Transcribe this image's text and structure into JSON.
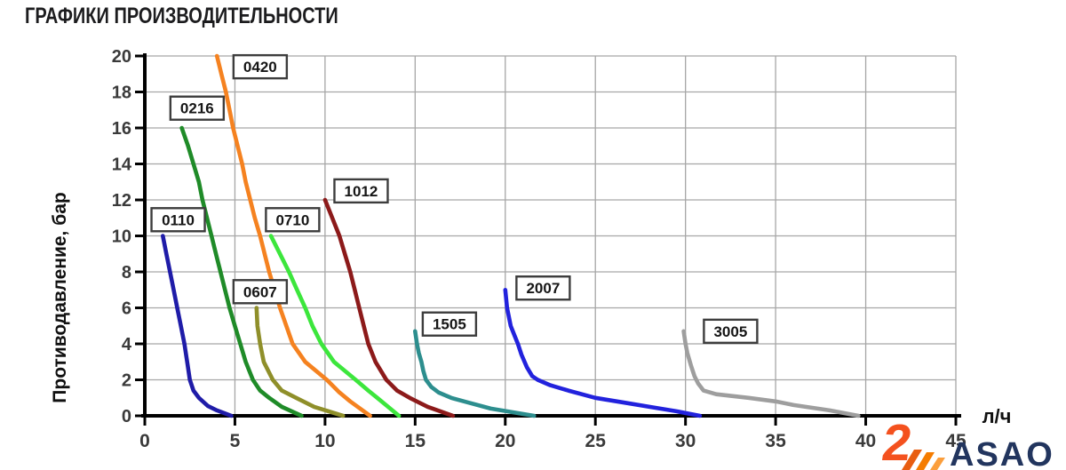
{
  "title": "ГРАФИКИ ПРОИЗВОДИТЕЛЬНОСТИ",
  "logo": {
    "text": "ASAO",
    "mark_glyph": "2",
    "text_color": "#22355e",
    "mark_color": "#f4511e",
    "stripe_colors": [
      "#e85d10",
      "#f57c00",
      "#fb9e3c"
    ]
  },
  "chart_data": {
    "type": "line",
    "title": "",
    "xlabel": "л/ч",
    "ylabel": "Противодавление, бар",
    "xlim": [
      0,
      45
    ],
    "ylim": [
      0,
      20
    ],
    "x_ticks": [
      0,
      5,
      10,
      15,
      20,
      25,
      30,
      35,
      40,
      45
    ],
    "y_ticks": [
      0,
      2,
      4,
      6,
      8,
      10,
      12,
      14,
      16,
      18,
      20
    ],
    "grid": true,
    "grid_color": "#a6a6a6",
    "axis_color": "#000000",
    "tick_label_color": "#3a3a3a",
    "legend_position": "inline-boxed-labels",
    "series": [
      {
        "name": "0110",
        "color": "#1f1ca8",
        "label_at": [
          1.85,
          10.9
        ],
        "points": [
          [
            1.0,
            10
          ],
          [
            1.2,
            9
          ],
          [
            1.4,
            8
          ],
          [
            1.6,
            7
          ],
          [
            1.8,
            6
          ],
          [
            2.0,
            5
          ],
          [
            2.2,
            4
          ],
          [
            2.35,
            3
          ],
          [
            2.5,
            2
          ],
          [
            2.7,
            1.4
          ],
          [
            3.0,
            1.0
          ],
          [
            3.5,
            0.55
          ],
          [
            4.0,
            0.3
          ],
          [
            4.8,
            0
          ]
        ]
      },
      {
        "name": "0216",
        "color": "#1f8b28",
        "label_at": [
          2.9,
          17.1
        ],
        "points": [
          [
            2.05,
            16
          ],
          [
            2.4,
            15
          ],
          [
            2.7,
            14
          ],
          [
            3.0,
            13
          ],
          [
            3.2,
            12
          ],
          [
            3.45,
            11
          ],
          [
            3.7,
            10
          ],
          [
            3.95,
            9
          ],
          [
            4.2,
            8
          ],
          [
            4.45,
            7
          ],
          [
            4.7,
            6
          ],
          [
            5.0,
            5
          ],
          [
            5.3,
            4
          ],
          [
            5.6,
            3
          ],
          [
            6.0,
            2
          ],
          [
            6.4,
            1.4
          ],
          [
            6.9,
            1.0
          ],
          [
            7.6,
            0.5
          ],
          [
            8.7,
            0
          ]
        ]
      },
      {
        "name": "0420",
        "color": "#f58220",
        "label_at": [
          6.4,
          19.4
        ],
        "points": [
          [
            4.0,
            20
          ],
          [
            4.25,
            19
          ],
          [
            4.5,
            18
          ],
          [
            4.7,
            17
          ],
          [
            4.9,
            16
          ],
          [
            5.15,
            15
          ],
          [
            5.4,
            14
          ],
          [
            5.6,
            13
          ],
          [
            5.85,
            12
          ],
          [
            6.1,
            11
          ],
          [
            6.4,
            10
          ],
          [
            6.65,
            9
          ],
          [
            6.9,
            8
          ],
          [
            7.2,
            7
          ],
          [
            7.5,
            6
          ],
          [
            7.85,
            5
          ],
          [
            8.2,
            4
          ],
          [
            8.9,
            3
          ],
          [
            10.1,
            2
          ],
          [
            10.8,
            1.3
          ],
          [
            11.4,
            0.8
          ],
          [
            12.5,
            0
          ]
        ]
      },
      {
        "name": "0607",
        "color": "#8f8f2a",
        "label_at": [
          6.4,
          6.9
        ],
        "points": [
          [
            6.2,
            6
          ],
          [
            6.25,
            5
          ],
          [
            6.4,
            4
          ],
          [
            6.6,
            3
          ],
          [
            7.1,
            2
          ],
          [
            7.6,
            1.4
          ],
          [
            8.4,
            1.0
          ],
          [
            9.4,
            0.5
          ],
          [
            11.0,
            0
          ]
        ]
      },
      {
        "name": "0710",
        "color": "#3ce63c",
        "label_at": [
          8.2,
          10.9
        ],
        "points": [
          [
            7.0,
            10
          ],
          [
            7.5,
            9
          ],
          [
            8.0,
            8
          ],
          [
            8.45,
            7
          ],
          [
            8.9,
            6
          ],
          [
            9.3,
            5
          ],
          [
            9.8,
            4
          ],
          [
            10.5,
            3
          ],
          [
            11.7,
            2
          ],
          [
            12.4,
            1.4
          ],
          [
            12.9,
            1.0
          ],
          [
            13.5,
            0.5
          ],
          [
            14.1,
            0
          ]
        ]
      },
      {
        "name": "1012",
        "color": "#8c1a1a",
        "label_at": [
          12.0,
          12.5
        ],
        "points": [
          [
            10.0,
            12
          ],
          [
            10.4,
            11
          ],
          [
            10.8,
            10
          ],
          [
            11.1,
            9
          ],
          [
            11.4,
            8
          ],
          [
            11.65,
            7
          ],
          [
            11.9,
            6
          ],
          [
            12.15,
            5
          ],
          [
            12.4,
            4
          ],
          [
            12.8,
            3
          ],
          [
            13.4,
            2
          ],
          [
            14.0,
            1.4
          ],
          [
            14.7,
            1.0
          ],
          [
            15.7,
            0.5
          ],
          [
            17.1,
            0
          ]
        ]
      },
      {
        "name": "1505",
        "color": "#2d8e8e",
        "label_at": [
          16.9,
          5.1
        ],
        "points": [
          [
            15.0,
            4.7
          ],
          [
            15.1,
            4
          ],
          [
            15.2,
            3.5
          ],
          [
            15.35,
            3
          ],
          [
            15.45,
            2.5
          ],
          [
            15.6,
            2
          ],
          [
            15.9,
            1.6
          ],
          [
            16.3,
            1.3
          ],
          [
            17.0,
            1.0
          ],
          [
            17.9,
            0.75
          ],
          [
            19.2,
            0.4
          ],
          [
            21.6,
            0
          ]
        ]
      },
      {
        "name": "2007",
        "color": "#2222dd",
        "label_at": [
          22.1,
          7.1
        ],
        "points": [
          [
            20.0,
            7
          ],
          [
            20.1,
            6
          ],
          [
            20.3,
            5
          ],
          [
            20.5,
            4.5
          ],
          [
            20.7,
            4
          ],
          [
            20.9,
            3.4
          ],
          [
            21.2,
            2.7
          ],
          [
            21.5,
            2.2
          ],
          [
            21.8,
            2.0
          ],
          [
            22.5,
            1.7
          ],
          [
            23.5,
            1.4
          ],
          [
            25.0,
            1.0
          ],
          [
            26.5,
            0.75
          ],
          [
            28.0,
            0.5
          ],
          [
            29.5,
            0.25
          ],
          [
            30.8,
            0
          ]
        ]
      },
      {
        "name": "3005",
        "color": "#9e9e9e",
        "label_at": [
          32.5,
          4.7
        ],
        "points": [
          [
            29.9,
            4.7
          ],
          [
            30.0,
            4
          ],
          [
            30.1,
            3.5
          ],
          [
            30.3,
            2.8
          ],
          [
            30.5,
            2.2
          ],
          [
            30.7,
            1.8
          ],
          [
            31.0,
            1.4
          ],
          [
            31.7,
            1.2
          ],
          [
            33.5,
            1.0
          ],
          [
            35.0,
            0.8
          ],
          [
            36.0,
            0.6
          ],
          [
            37.0,
            0.45
          ],
          [
            38.0,
            0.3
          ],
          [
            39.6,
            0
          ]
        ]
      }
    ]
  }
}
